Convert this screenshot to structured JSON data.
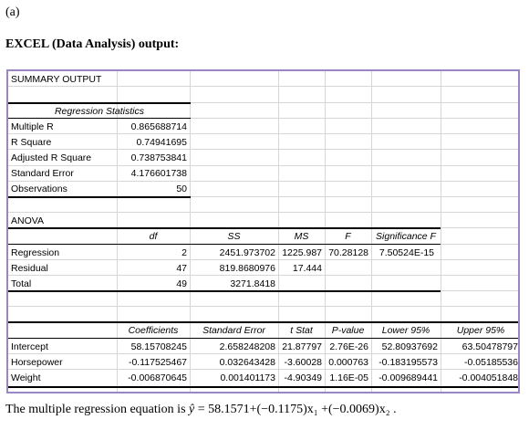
{
  "part_label": "(a)",
  "heading": "EXCEL (Data Analysis) output:",
  "summary_title": "SUMMARY OUTPUT",
  "regression_statistics": {
    "header": "Regression Statistics",
    "rows": [
      {
        "label": "Multiple R",
        "value": "0.865688714"
      },
      {
        "label": "R Square",
        "value": "0.74941695"
      },
      {
        "label": "Adjusted R Square",
        "value": "0.738753841"
      },
      {
        "label": "Standard Error",
        "value": "4.176601738"
      },
      {
        "label": "Observations",
        "value": "50"
      }
    ]
  },
  "anova": {
    "title": "ANOVA",
    "headers": {
      "df": "df",
      "ss": "SS",
      "ms": "MS",
      "f": "F",
      "sig": "Significance F"
    },
    "rows": [
      {
        "label": "Regression",
        "df": "2",
        "ss": "2451.973702",
        "ms": "1225.987",
        "f": "70.28128",
        "sig": "7.50524E-15"
      },
      {
        "label": "Residual",
        "df": "47",
        "ss": "819.8680976",
        "ms": "17.444",
        "f": "",
        "sig": ""
      },
      {
        "label": "Total",
        "df": "49",
        "ss": "3271.8418",
        "ms": "",
        "f": "",
        "sig": ""
      }
    ]
  },
  "coefficients": {
    "headers": {
      "coef": "Coefficients",
      "se": "Standard Error",
      "t": "t Stat",
      "p": "P-value",
      "lo": "Lower 95%",
      "hi": "Upper 95%"
    },
    "rows": [
      {
        "label": "Intercept",
        "coef": "58.15708245",
        "se": "2.658248208",
        "t": "21.87797",
        "p": "2.76E-26",
        "lo": "52.80937692",
        "hi": "63.50478797"
      },
      {
        "label": "Horsepower",
        "coef": "-0.117525467",
        "se": "0.032643428",
        "t": "-3.60028",
        "p": "0.000763",
        "lo": "-0.183195573",
        "hi": "-0.05185536"
      },
      {
        "label": "Weight",
        "coef": "-0.006870645",
        "se": "0.001401173",
        "t": "-4.90349",
        "p": "1.16E-05",
        "lo": "-0.009689441",
        "hi": "-0.004051848"
      }
    ]
  },
  "equation": {
    "lead": "The multiple regression  equation is ",
    "yhat": "ŷ",
    "rhs": " = 58.1571+(−0.1175)x₁ +(−0.0069)x₂ ."
  }
}
